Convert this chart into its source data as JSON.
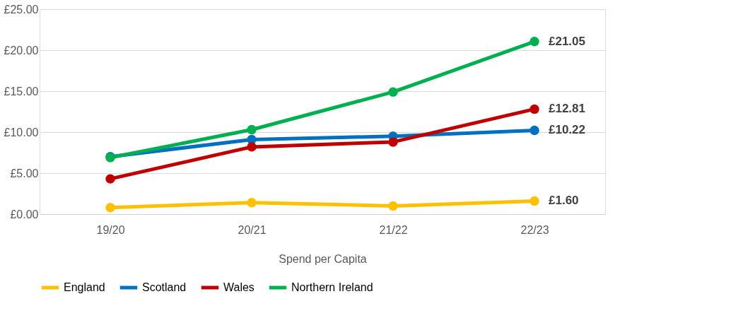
{
  "chart_data": {
    "type": "line",
    "xlabel": "Spend per Capita",
    "categories": [
      "19/20",
      "20/21",
      "21/22",
      "22/23"
    ],
    "series": [
      {
        "name": "England",
        "color": "#ffc000",
        "values": [
          0.8,
          1.4,
          1.0,
          1.6
        ],
        "value_labels": [
          null,
          null,
          null,
          "£1.60"
        ]
      },
      {
        "name": "Scotland",
        "color": "#0070c0",
        "values": [
          7.0,
          9.1,
          9.5,
          10.22
        ],
        "value_labels": [
          null,
          null,
          null,
          "£10.22"
        ]
      },
      {
        "name": "Wales",
        "color": "#c00000",
        "values": [
          4.3,
          8.2,
          8.8,
          12.81
        ],
        "value_labels": [
          null,
          null,
          null,
          "£12.81"
        ]
      },
      {
        "name": "Northern Ireland",
        "color": "#00b050",
        "values": [
          6.9,
          10.3,
          14.9,
          21.05
        ],
        "value_labels": [
          null,
          null,
          null,
          "£21.05"
        ]
      }
    ],
    "ylim": [
      0,
      25
    ],
    "yticks": [
      {
        "value": 0,
        "label": "£0.00"
      },
      {
        "value": 5,
        "label": "£5.00"
      },
      {
        "value": 10,
        "label": "£10.00"
      },
      {
        "value": 15,
        "label": "£15.00"
      },
      {
        "value": 20,
        "label": "£20.00"
      },
      {
        "value": 25,
        "label": "£25.00"
      }
    ],
    "grid": "y",
    "legend": "bottom",
    "marker": "circle",
    "line_style": "solid"
  }
}
